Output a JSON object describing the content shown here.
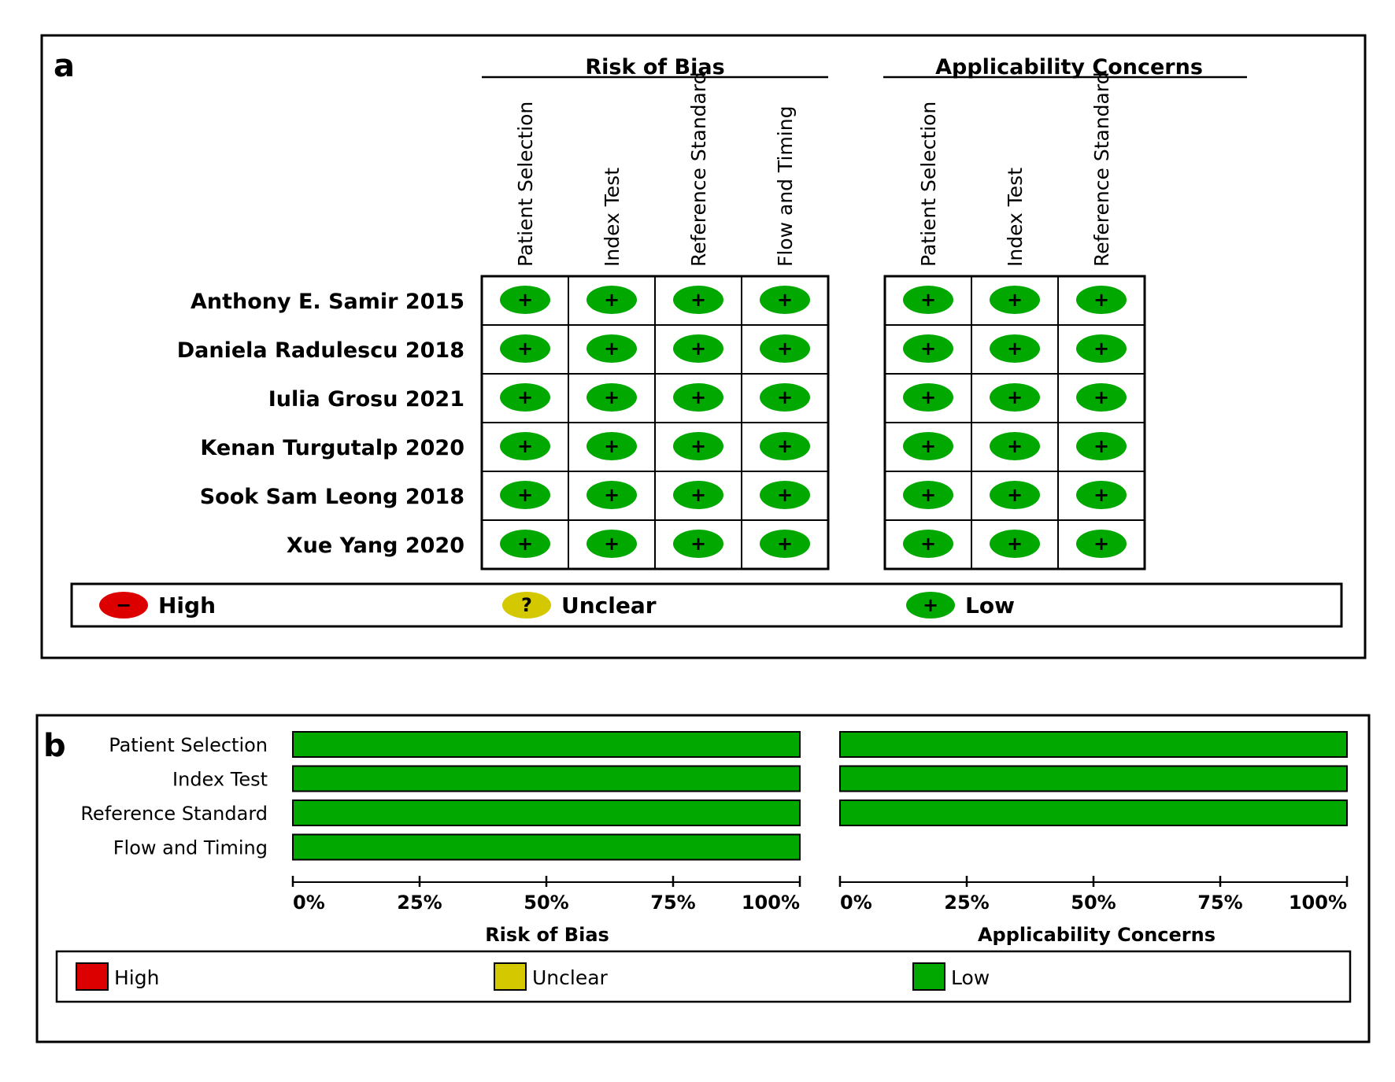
{
  "colors": {
    "high": "#dd0000",
    "unclear": "#d4c800",
    "low": "#00a800",
    "border": "#000000"
  },
  "panel_a": {
    "label": "a",
    "risk_header": "Risk of Bias",
    "applic_header": "Applicability Concerns",
    "risk_columns": [
      "Patient Selection",
      "Index Test",
      "Reference Standard",
      "Flow and Timing"
    ],
    "applic_columns": [
      "Patient Selection",
      "Index Test",
      "Reference Standard"
    ],
    "legend": [
      {
        "label": "High",
        "symbol": "−",
        "level": "high"
      },
      {
        "label": "Unclear",
        "symbol": "?",
        "level": "unclear"
      },
      {
        "label": "Low",
        "symbol": "+",
        "level": "low"
      }
    ]
  },
  "panel_b": {
    "label": "b",
    "risk_title": "Risk of Bias",
    "applic_title": "Applicability Concerns",
    "ticks": [
      "0%",
      "25%",
      "50%",
      "75%",
      "100%"
    ],
    "legend": [
      {
        "label": "High",
        "level": "high"
      },
      {
        "label": "Unclear",
        "level": "unclear"
      },
      {
        "label": "Low",
        "level": "low"
      }
    ]
  },
  "chart_data": [
    {
      "type": "table",
      "title": "",
      "studies": [
        "Anthony E. Samir 2015",
        "Daniela Radulescu 2018",
        "Iulia Grosu 2021",
        "Kenan Turgutalp 2020",
        "Sook Sam Leong 2018",
        "Xue Yang 2020"
      ],
      "risk_of_bias": [
        [
          "low",
          "low",
          "low",
          "low"
        ],
        [
          "low",
          "low",
          "low",
          "low"
        ],
        [
          "low",
          "low",
          "low",
          "low"
        ],
        [
          "low",
          "low",
          "low",
          "low"
        ],
        [
          "low",
          "low",
          "low",
          "low"
        ],
        [
          "low",
          "low",
          "low",
          "low"
        ]
      ],
      "applicability_concerns": [
        [
          "low",
          "low",
          "low"
        ],
        [
          "low",
          "low",
          "low"
        ],
        [
          "low",
          "low",
          "low"
        ],
        [
          "low",
          "low",
          "low"
        ],
        [
          "low",
          "low",
          "low"
        ],
        [
          "low",
          "low",
          "low"
        ]
      ]
    },
    {
      "type": "bar",
      "orientation": "horizontal",
      "stacked": true,
      "title": "Risk of Bias",
      "categories": [
        "Patient Selection",
        "Index Test",
        "Reference Standard",
        "Flow and Timing"
      ],
      "series": [
        {
          "name": "High",
          "values": [
            0,
            0,
            0,
            0
          ]
        },
        {
          "name": "Unclear",
          "values": [
            0,
            0,
            0,
            0
          ]
        },
        {
          "name": "Low",
          "values": [
            100,
            100,
            100,
            100
          ]
        }
      ],
      "xlim": [
        0,
        100
      ]
    },
    {
      "type": "bar",
      "orientation": "horizontal",
      "stacked": true,
      "title": "Applicability Concerns",
      "categories": [
        "Patient Selection",
        "Index Test",
        "Reference Standard"
      ],
      "series": [
        {
          "name": "High",
          "values": [
            0,
            0,
            0
          ]
        },
        {
          "name": "Unclear",
          "values": [
            0,
            0,
            0
          ]
        },
        {
          "name": "Low",
          "values": [
            100,
            100,
            100
          ]
        }
      ],
      "xlim": [
        0,
        100
      ]
    }
  ]
}
